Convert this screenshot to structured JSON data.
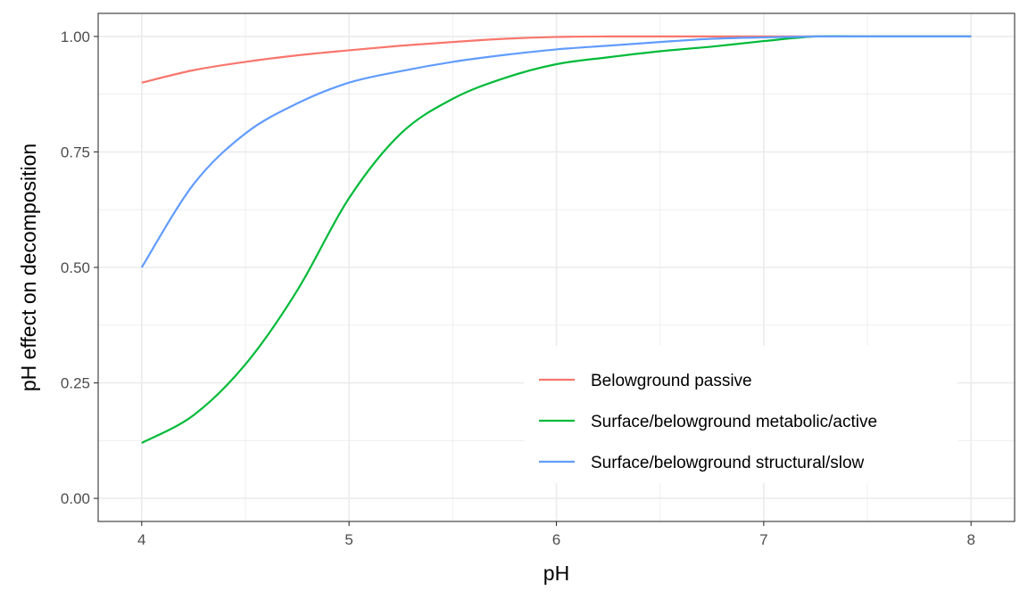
{
  "chart_data": {
    "type": "line",
    "xlabel": "pH",
    "ylabel": "pH effect on decomposition",
    "xlim": [
      3.79,
      8.21
    ],
    "ylim": [
      -0.05,
      1.05
    ],
    "x_ticks": [
      4,
      5,
      6,
      7,
      8
    ],
    "x_tick_labels": [
      "4",
      "5",
      "6",
      "7",
      "8"
    ],
    "y_ticks": [
      0,
      0.25,
      0.5,
      0.75,
      1.0
    ],
    "y_tick_labels": [
      "0.00",
      "0.25",
      "0.50",
      "0.75",
      "1.00"
    ],
    "grid": true,
    "legend_position": "bottom-right, inside plot",
    "x": [
      4.0,
      4.25,
      4.5,
      4.75,
      5.0,
      5.25,
      5.5,
      5.75,
      6.0,
      6.25,
      6.5,
      6.75,
      7.0,
      7.25,
      7.5,
      7.75,
      8.0
    ],
    "series": [
      {
        "name": "Belowground passive",
        "color": "#F8766D",
        "values": [
          0.9,
          0.927,
          0.945,
          0.959,
          0.97,
          0.98,
          0.988,
          0.995,
          0.999,
          1.0,
          1.0,
          1.0,
          1.0,
          1.0,
          1.0,
          1.0,
          1.0
        ]
      },
      {
        "name": "Surface/belowground metabolic/active",
        "color": "#00BA38",
        "values": [
          0.12,
          0.18,
          0.29,
          0.45,
          0.65,
          0.79,
          0.865,
          0.91,
          0.94,
          0.955,
          0.968,
          0.978,
          0.99,
          1.0,
          1.0,
          1.0,
          1.0
        ]
      },
      {
        "name": "Surface/belowground structural/slow",
        "color": "#619CFF",
        "values": [
          0.5,
          0.68,
          0.79,
          0.855,
          0.9,
          0.925,
          0.945,
          0.96,
          0.972,
          0.98,
          0.988,
          0.995,
          0.998,
          1.0,
          1.0,
          1.0,
          1.0
        ]
      }
    ]
  }
}
